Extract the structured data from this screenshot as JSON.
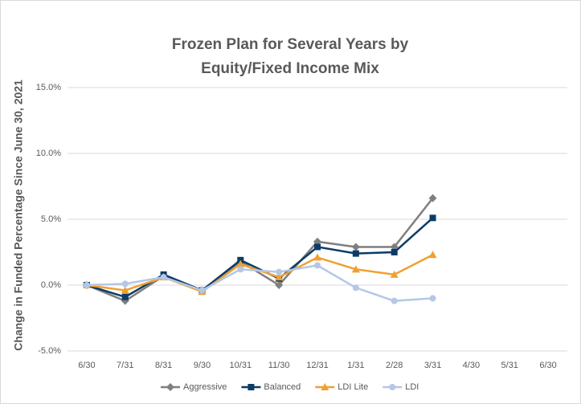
{
  "chart_data": {
    "type": "line",
    "title": [
      "Frozen Plan for Several Years by",
      "Equity/Fixed Income Mix"
    ],
    "y_label": "Change in Funded Percentage Since June 30, 2021",
    "categories": [
      "6/30",
      "7/31",
      "8/31",
      "9/30",
      "10/31",
      "11/30",
      "12/31",
      "1/31",
      "2/28",
      "3/31",
      "4/30",
      "5/31",
      "6/30"
    ],
    "series": [
      {
        "name": "Aggressive",
        "color": "#7f7f7f",
        "marker": "diamond",
        "values": [
          0,
          -1.2,
          0.7,
          -0.4,
          1.8,
          0,
          3.3,
          2.9,
          2.9,
          6.6,
          null,
          null,
          null
        ]
      },
      {
        "name": "Balanced",
        "color": "#0b3c68",
        "marker": "square",
        "values": [
          0,
          -0.9,
          0.8,
          -0.4,
          1.9,
          0.5,
          2.9,
          2.4,
          2.5,
          5.1,
          null,
          null,
          null
        ]
      },
      {
        "name": "LDI Lite",
        "color": "#f0a030",
        "marker": "triangle",
        "values": [
          0,
          -0.4,
          0.6,
          -0.5,
          1.6,
          0.6,
          2.1,
          1.2,
          0.8,
          2.3,
          null,
          null,
          null
        ]
      },
      {
        "name": "LDI",
        "color": "#b4c7e7",
        "marker": "circle",
        "values": [
          0,
          0.1,
          0.6,
          -0.4,
          1.2,
          1.0,
          1.5,
          -0.2,
          -1.2,
          -1.0,
          null,
          null,
          null
        ]
      }
    ],
    "ylim": [
      -5,
      15
    ],
    "yticks": [
      {
        "value": -5,
        "label": "-5.0%"
      },
      {
        "value": 0,
        "label": "0.0%"
      },
      {
        "value": 5,
        "label": "5.0%"
      },
      {
        "value": 10,
        "label": "10.0%"
      },
      {
        "value": 15,
        "label": "15.0%"
      }
    ],
    "grid": true,
    "legend": "bottom"
  }
}
